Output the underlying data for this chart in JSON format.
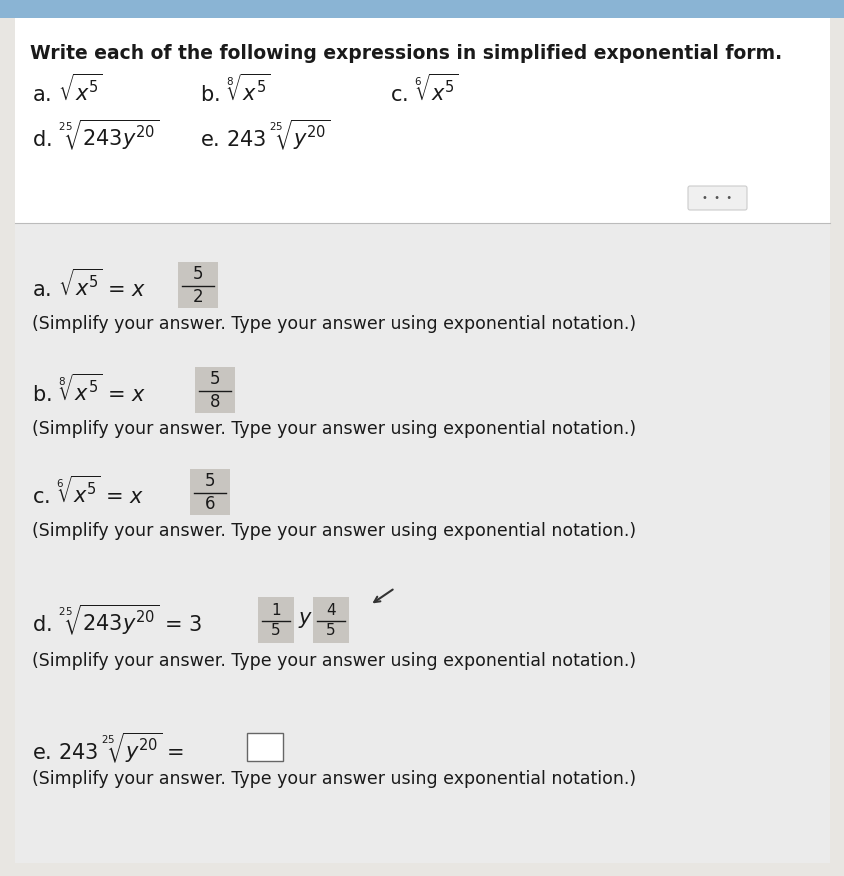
{
  "bg_top": "#b8cfe8",
  "bg_main": "#e8e6e2",
  "white_panel": "#ffffff",
  "gray_panel": "#ebebeb",
  "answer_box_color": "#c8c5c0",
  "title": "Write each of the following expressions in simplified exponential form.",
  "simplify_note": "(Simplify your answer. Type your answer using exponential notation.)",
  "text_color": "#1a1a1a",
  "dots_btn_color": "#f0f0f0",
  "dots_btn_border": "#cccccc"
}
